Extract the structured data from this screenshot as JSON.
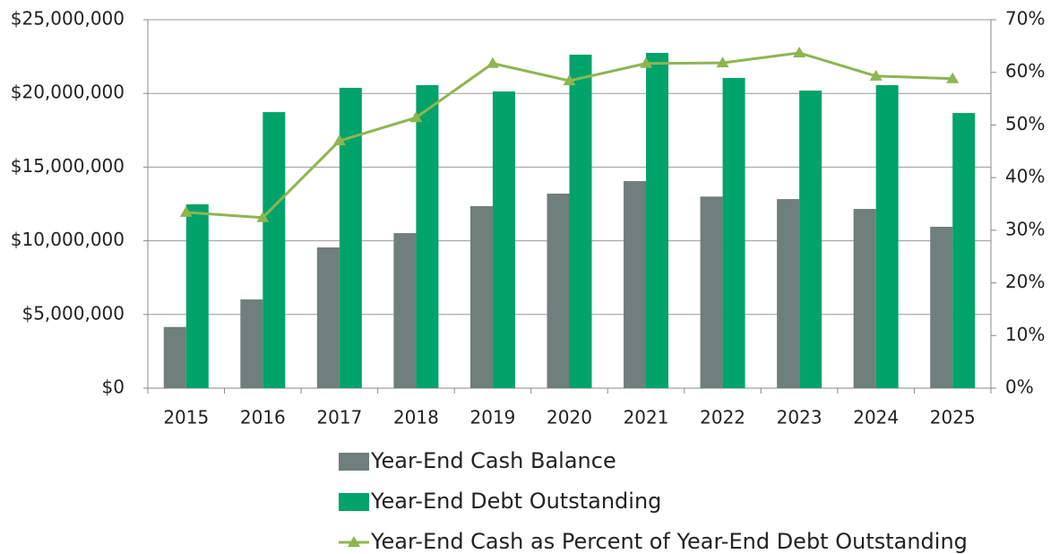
{
  "chart_data": {
    "type": "bar",
    "categories": [
      "2015",
      "2016",
      "2017",
      "2018",
      "2019",
      "2020",
      "2021",
      "2022",
      "2023",
      "2024",
      "2025"
    ],
    "series": [
      {
        "name": "Year-End Cash Balance",
        "color": "#6f7f7b",
        "values": [
          4150000,
          6020000,
          9550000,
          10520000,
          12350000,
          13200000,
          14050000,
          13000000,
          12830000,
          12160000,
          10950000
        ]
      },
      {
        "name": "Year-End Debt Outstanding",
        "color": "#00a36a",
        "values": [
          12470000,
          18730000,
          20380000,
          20560000,
          20130000,
          22630000,
          22750000,
          21050000,
          20190000,
          20560000,
          18670000
        ]
      },
      {
        "name": "Year-End Cash as Percent of Year-End Debt Outstanding",
        "color": "#8db650",
        "axis": "y2",
        "type": "line",
        "values": [
          33.4,
          32.4,
          47.0,
          51.4,
          61.7,
          58.4,
          61.7,
          61.8,
          63.7,
          59.3,
          58.8
        ]
      }
    ],
    "ylim": [
      0,
      25000000
    ],
    "yticks": [
      {
        "value": 0,
        "label": "$0"
      },
      {
        "value": 5000000,
        "label": "$5,000,000"
      },
      {
        "value": 10000000,
        "label": "$10,000,000"
      },
      {
        "value": 15000000,
        "label": "$15,000,000"
      },
      {
        "value": 20000000,
        "label": "$20,000,000"
      },
      {
        "value": 25000000,
        "label": "$25,000,000"
      }
    ],
    "y2lim": [
      0,
      70
    ],
    "y2ticks": [
      {
        "value": 0,
        "label": "0%"
      },
      {
        "value": 10,
        "label": "10%"
      },
      {
        "value": 20,
        "label": "20%"
      },
      {
        "value": 30,
        "label": "30%"
      },
      {
        "value": 40,
        "label": "40%"
      },
      {
        "value": 50,
        "label": "50%"
      },
      {
        "value": 60,
        "label": "60%"
      },
      {
        "value": 70,
        "label": "70%"
      }
    ],
    "grid": true
  }
}
